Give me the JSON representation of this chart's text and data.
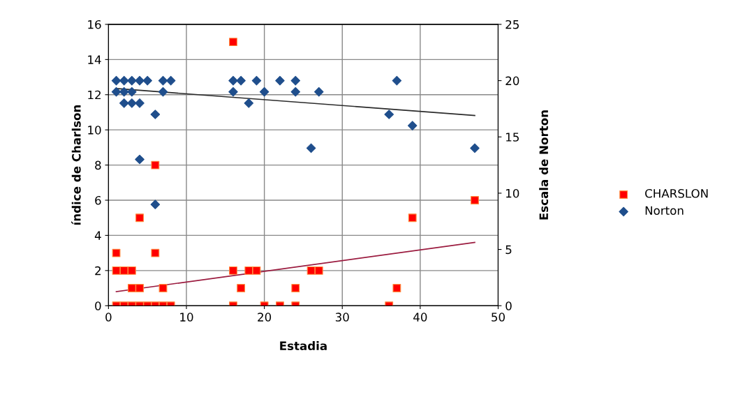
{
  "chart_data": {
    "type": "scatter",
    "xlabel": "Estadia",
    "ylabel": "índice de Charlson",
    "y2label": "Escala de Norton",
    "xlim": [
      0,
      50
    ],
    "xticks": [
      0,
      10,
      20,
      30,
      40,
      50
    ],
    "ylim": [
      0,
      16
    ],
    "yticks": [
      0,
      2,
      4,
      6,
      8,
      10,
      12,
      14,
      16
    ],
    "y2lim": [
      0,
      25
    ],
    "y2ticks": [
      0,
      5,
      10,
      15,
      20,
      25
    ],
    "grid": true,
    "legend": "right",
    "series": [
      {
        "name": "CHARSLON",
        "color": "#ff0000",
        "marker": "square",
        "x": [
          16,
          6,
          47,
          4,
          39,
          1,
          6,
          1,
          2,
          3,
          16,
          18,
          19,
          26,
          27,
          3,
          4,
          7,
          17,
          24,
          37,
          1,
          2,
          3,
          4,
          5,
          6,
          7,
          8,
          16,
          20,
          22,
          24,
          36
        ],
        "values": [
          15,
          8,
          6,
          5,
          5,
          3,
          3,
          2,
          2,
          2,
          2,
          2,
          2,
          2,
          2,
          1,
          1,
          1,
          1,
          1,
          1,
          0,
          0,
          0,
          0,
          0,
          0,
          0,
          0,
          0,
          0,
          0,
          0,
          0
        ]
      },
      {
        "name": "Norton",
        "color": "#1f4e8c",
        "marker": "diamond",
        "axis": "y2",
        "x": [
          1,
          2,
          3,
          4,
          5,
          7,
          8,
          16,
          17,
          19,
          22,
          24,
          37,
          1,
          2,
          3,
          7,
          16,
          20,
          24,
          27,
          2,
          3,
          4,
          18,
          6,
          36,
          39,
          26,
          47,
          4,
          6
        ],
        "values": [
          20,
          20,
          20,
          20,
          20,
          20,
          20,
          20,
          20,
          20,
          20,
          20,
          20,
          19,
          19,
          19,
          19,
          19,
          19,
          19,
          19,
          18,
          18,
          18,
          18,
          17,
          17,
          16,
          14,
          14,
          13,
          9
        ]
      },
      {
        "type": "line",
        "color": "#9b1b3f",
        "marker": "none",
        "x": [
          1,
          47
        ],
        "values": [
          0.8,
          3.6
        ]
      },
      {
        "type": "line",
        "color": "#2b2b2b",
        "marker": "none",
        "axis": "y2",
        "x": [
          1,
          47
        ],
        "values": [
          19.3,
          16.9
        ]
      }
    ]
  }
}
